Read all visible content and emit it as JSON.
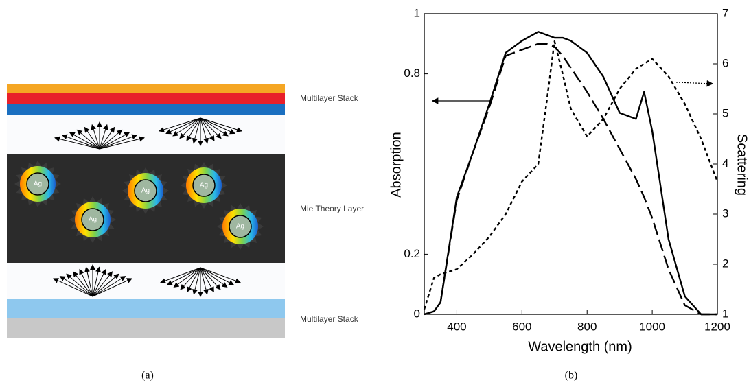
{
  "diagram": {
    "labels": [
      "Multilayer Stack",
      "Mie Theory Layer",
      "Multilayer Stack"
    ],
    "particles": [
      "Ag",
      "Ag",
      "Ag",
      "Ag",
      "Ag"
    ],
    "caption": "(a)"
  },
  "chart_data": {
    "type": "line",
    "caption": "(b)",
    "xlabel": "Wavelength (nm)",
    "ylabel": "Absorption",
    "y2label": "Scattering",
    "x": [
      300,
      330,
      350,
      400,
      450,
      500,
      550,
      600,
      650,
      675,
      700,
      725,
      750,
      800,
      850,
      900,
      950,
      975,
      1000,
      1050,
      1100,
      1150,
      1200
    ],
    "series": [
      {
        "color": "#000000",
        "dash": "solid",
        "values": [
          0,
          0.01,
          0.04,
          0.39,
          0.54,
          0.7,
          0.87,
          0.91,
          0.94,
          0.93,
          0.92,
          0.92,
          0.91,
          0.87,
          0.79,
          0.67,
          0.65,
          0.74,
          0.61,
          0.25,
          0.06,
          0,
          0
        ]
      },
      {
        "color": "#000000",
        "dash": "dashed",
        "values": [
          0,
          0.01,
          0.04,
          0.38,
          0.54,
          0.69,
          0.86,
          0.88,
          0.9,
          0.9,
          0.89,
          0.86,
          0.82,
          0.74,
          0.65,
          0.55,
          0.45,
          0.39,
          0.32,
          0.15,
          0.03,
          0,
          0
        ]
      },
      {
        "color": "#000000",
        "dash": "dotted",
        "axis": "y2",
        "values": [
          1.1,
          1.73,
          1.8,
          1.9,
          2.2,
          2.55,
          3.0,
          3.65,
          4.0,
          5.2,
          6.45,
          5.8,
          5.1,
          4.55,
          4.9,
          5.5,
          5.9,
          6.0,
          6.1,
          5.75,
          5.2,
          4.5,
          3.65
        ]
      }
    ],
    "xlim": [
      300,
      1200
    ],
    "xticks": [
      400,
      600,
      800,
      1000,
      1200
    ],
    "ylim": [
      0,
      1
    ],
    "yticks": [
      0,
      0.2,
      0.8,
      1
    ],
    "y2lim": [
      1,
      7
    ],
    "y2ticks": [
      1,
      2,
      3,
      4,
      5,
      6,
      7
    ]
  }
}
